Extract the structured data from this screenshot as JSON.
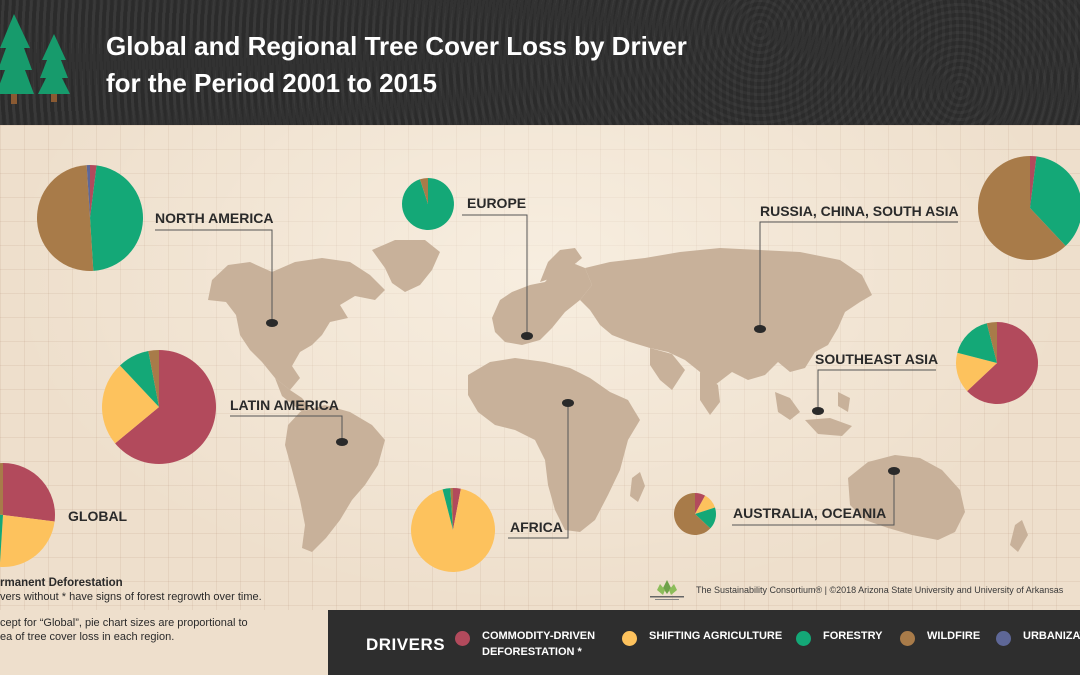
{
  "header": {
    "title_line1": "Global and Regional Tree Cover Loss by Driver",
    "title_line2": "for the Period 2001 to 2015"
  },
  "colors": {
    "commodity": "#b24a5c",
    "shifting": "#fdc25d",
    "forestry": "#14a877",
    "wildfire": "#a87b49",
    "urbanization": "#5e6797",
    "map_land": "#c8b19a",
    "header_bg": "#2b2b2b",
    "legend_bg": "#2e2e2e"
  },
  "chart_data": [
    {
      "type": "pie",
      "region": "NORTH AMERICA",
      "labels": [
        "Commodity-driven deforestation",
        "Shifting agriculture",
        "Forestry",
        "Wildfire",
        "Urbanization"
      ],
      "values": [
        2,
        0,
        47,
        50,
        1
      ]
    },
    {
      "type": "pie",
      "region": "EUROPE",
      "labels": [
        "Commodity-driven deforestation",
        "Shifting agriculture",
        "Forestry",
        "Wildfire",
        "Urbanization"
      ],
      "values": [
        0,
        0,
        95,
        5,
        0
      ]
    },
    {
      "type": "pie",
      "region": "RUSSIA, CHINA, SOUTH ASIA",
      "labels": [
        "Commodity-driven deforestation",
        "Shifting agriculture",
        "Forestry",
        "Wildfire",
        "Urbanization"
      ],
      "values": [
        2,
        0,
        36,
        62,
        0
      ]
    },
    {
      "type": "pie",
      "region": "LATIN AMERICA",
      "labels": [
        "Commodity-driven deforestation",
        "Shifting agriculture",
        "Forestry",
        "Wildfire",
        "Urbanization"
      ],
      "values": [
        64,
        24,
        9,
        3,
        0
      ]
    },
    {
      "type": "pie",
      "region": "SOUTHEAST ASIA",
      "labels": [
        "Commodity-driven deforestation",
        "Shifting agriculture",
        "Forestry",
        "Wildfire",
        "Urbanization"
      ],
      "values": [
        63,
        16,
        17,
        4,
        0
      ]
    },
    {
      "type": "pie",
      "region": "GLOBAL",
      "labels": [
        "Commodity-driven deforestation",
        "Shifting agriculture",
        "Forestry",
        "Wildfire",
        "Urbanization"
      ],
      "values": [
        27,
        24,
        26,
        23,
        0
      ]
    },
    {
      "type": "pie",
      "region": "AFRICA",
      "labels": [
        "Commodity-driven deforestation",
        "Shifting agriculture",
        "Forestry",
        "Wildfire",
        "Urbanization"
      ],
      "values": [
        3,
        93,
        3,
        1,
        0
      ]
    },
    {
      "type": "pie",
      "region": "AUSTRALIA, OCEANIA",
      "labels": [
        "Commodity-driven deforestation",
        "Shifting agriculture",
        "Forestry",
        "Wildfire",
        "Urbanization"
      ],
      "values": [
        8,
        12,
        17,
        63,
        0
      ]
    }
  ],
  "footnote": {
    "line1": "rmanent Deforestation",
    "line2": "vers without * have signs of forest regrowth over time.",
    "line3": "cept for “Global”, pie chart sizes are proportional to",
    "line4": "ea of tree cover loss in each region."
  },
  "credit": {
    "text": "The Sustainability Consortium® | ©2018 Arizona State University and University of Arkansas"
  },
  "legend": {
    "title": "DRIVERS",
    "items": [
      {
        "line1": "COMMODITY-DRIVEN",
        "line2": "DEFORESTATION *"
      },
      {
        "line1": "SHIFTING AGRICULTURE",
        "line2": ""
      },
      {
        "line1": "FORESTRY",
        "line2": ""
      },
      {
        "line1": "WILDFIRE",
        "line2": ""
      },
      {
        "line1": "URBANIZATION",
        "line2": ""
      }
    ]
  }
}
